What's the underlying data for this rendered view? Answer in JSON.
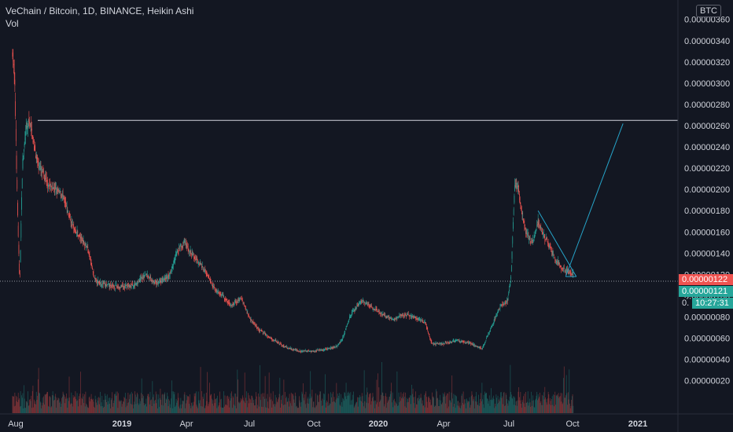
{
  "header": {
    "title": "VeChain / Bitcoin, 1D, BINANCE, Heikin Ashi",
    "volume_label": "Vol"
  },
  "currency_badge": "BTC",
  "price_tags": {
    "last_price": "0.00000122",
    "current_price": "0.00000121",
    "countdown": "10:27:31",
    "partial_label": "0."
  },
  "colors": {
    "background": "#131722",
    "up": "#26a69a",
    "down": "#ef5350",
    "trendline": "#26a4c9",
    "resistance": "#d1d4dc",
    "last_price_tag": "#ef5350",
    "current_price_tag": "#26a69a"
  },
  "chart_data": {
    "type": "candlestick",
    "title": "VeChain / Bitcoin, 1D, BINANCE, Heikin Ashi",
    "ylim": [
      5e-08,
      3.62e-06
    ],
    "y_ticks": [
      "0.00000020",
      "0.00000040",
      "0.00000060",
      "0.00000080",
      "0.00000100",
      "0.00000120",
      "0.00000140",
      "0.00000160",
      "0.00000180",
      "0.00000200",
      "0.00000220",
      "0.00000240",
      "0.00000260",
      "0.00000280",
      "0.00000300",
      "0.00000320",
      "0.00000340",
      "0.00000360"
    ],
    "x_ticks": [
      {
        "label": "Aug",
        "bold": false
      },
      {
        "label": "2019",
        "bold": true
      },
      {
        "label": "Apr",
        "bold": false
      },
      {
        "label": "Jul",
        "bold": false
      },
      {
        "label": "Oct",
        "bold": false
      },
      {
        "label": "2020",
        "bold": true
      },
      {
        "label": "Apr",
        "bold": false
      },
      {
        "label": "Jul",
        "bold": false
      },
      {
        "label": "Oct",
        "bold": false
      },
      {
        "label": "2021",
        "bold": true
      }
    ],
    "approx_close_path": [
      {
        "t": "2018-08-01",
        "v": 3.3e-06
      },
      {
        "t": "2018-08-04",
        "v": 3e-06
      },
      {
        "t": "2018-08-08",
        "v": 1.8e-06
      },
      {
        "t": "2018-08-11",
        "v": 1.1e-06
      },
      {
        "t": "2018-08-15",
        "v": 2.25e-06
      },
      {
        "t": "2018-08-20",
        "v": 2.55e-06
      },
      {
        "t": "2018-08-25",
        "v": 2.65e-06
      },
      {
        "t": "2018-09-05",
        "v": 2.25e-06
      },
      {
        "t": "2018-09-20",
        "v": 2.05e-06
      },
      {
        "t": "2018-10-10",
        "v": 1.95e-06
      },
      {
        "t": "2018-10-25",
        "v": 1.65e-06
      },
      {
        "t": "2018-11-15",
        "v": 1.45e-06
      },
      {
        "t": "2018-11-25",
        "v": 1.15e-06
      },
      {
        "t": "2018-12-10",
        "v": 1.1e-06
      },
      {
        "t": "2019-01-01",
        "v": 1.08e-06
      },
      {
        "t": "2019-01-20",
        "v": 1.1e-06
      },
      {
        "t": "2019-02-05",
        "v": 1.2e-06
      },
      {
        "t": "2019-02-20",
        "v": 1.12e-06
      },
      {
        "t": "2019-03-10",
        "v": 1.18e-06
      },
      {
        "t": "2019-03-20",
        "v": 1.4e-06
      },
      {
        "t": "2019-04-01",
        "v": 1.5e-06
      },
      {
        "t": "2019-04-10",
        "v": 1.4e-06
      },
      {
        "t": "2019-04-25",
        "v": 1.28e-06
      },
      {
        "t": "2019-05-15",
        "v": 1.05e-06
      },
      {
        "t": "2019-05-25",
        "v": 1e-06
      },
      {
        "t": "2019-06-05",
        "v": 9e-07
      },
      {
        "t": "2019-06-20",
        "v": 9.8e-07
      },
      {
        "t": "2019-07-01",
        "v": 8e-07
      },
      {
        "t": "2019-07-15",
        "v": 6.8e-07
      },
      {
        "t": "2019-08-01",
        "v": 6e-07
      },
      {
        "t": "2019-08-20",
        "v": 5.2e-07
      },
      {
        "t": "2019-09-10",
        "v": 4.8e-07
      },
      {
        "t": "2019-10-01",
        "v": 4.8e-07
      },
      {
        "t": "2019-10-20",
        "v": 5e-07
      },
      {
        "t": "2019-11-01",
        "v": 5.2e-07
      },
      {
        "t": "2019-11-10",
        "v": 6e-07
      },
      {
        "t": "2019-11-20",
        "v": 8e-07
      },
      {
        "t": "2019-12-05",
        "v": 9.5e-07
      },
      {
        "t": "2019-12-20",
        "v": 9e-07
      },
      {
        "t": "2020-01-05",
        "v": 8.2e-07
      },
      {
        "t": "2020-01-20",
        "v": 7.8e-07
      },
      {
        "t": "2020-02-05",
        "v": 8.2e-07
      },
      {
        "t": "2020-02-20",
        "v": 8e-07
      },
      {
        "t": "2020-03-05",
        "v": 7.5e-07
      },
      {
        "t": "2020-03-15",
        "v": 5.5e-07
      },
      {
        "t": "2020-04-01",
        "v": 5.5e-07
      },
      {
        "t": "2020-04-20",
        "v": 5.8e-07
      },
      {
        "t": "2020-05-10",
        "v": 5.5e-07
      },
      {
        "t": "2020-05-25",
        "v": 5e-07
      },
      {
        "t": "2020-06-10",
        "v": 7.5e-07
      },
      {
        "t": "2020-06-20",
        "v": 9e-07
      },
      {
        "t": "2020-06-30",
        "v": 9.5e-07
      },
      {
        "t": "2020-07-05",
        "v": 1.2e-06
      },
      {
        "t": "2020-07-10",
        "v": 2.05e-06
      },
      {
        "t": "2020-07-15",
        "v": 2e-06
      },
      {
        "t": "2020-07-25",
        "v": 1.6e-06
      },
      {
        "t": "2020-08-05",
        "v": 1.5e-06
      },
      {
        "t": "2020-08-12",
        "v": 1.7e-06
      },
      {
        "t": "2020-08-25",
        "v": 1.5e-06
      },
      {
        "t": "2020-09-05",
        "v": 1.35e-06
      },
      {
        "t": "2020-09-15",
        "v": 1.25e-06
      },
      {
        "t": "2020-09-25",
        "v": 1.22e-06
      },
      {
        "t": "2020-10-01",
        "v": 1.21e-06
      }
    ],
    "annotations": [
      {
        "type": "horizontal-line",
        "label": "resistance",
        "value": 2.65e-06
      },
      {
        "type": "trendline",
        "from": {
          "t": "2020-08-12",
          "v": 1.8e-06
        },
        "to": {
          "t": "2020-10-05",
          "v": 1.18e-06
        }
      },
      {
        "type": "trendline",
        "from": {
          "t": "2020-09-20",
          "v": 1.18e-06
        },
        "to": {
          "t": "2020-10-05",
          "v": 1.18e-06
        }
      },
      {
        "type": "trendline",
        "from": {
          "t": "2020-09-20",
          "v": 1.18e-06
        },
        "to": {
          "t": "2020-12-10",
          "v": 2.62e-06
        }
      }
    ],
    "grid": false,
    "volume_pane": true
  }
}
